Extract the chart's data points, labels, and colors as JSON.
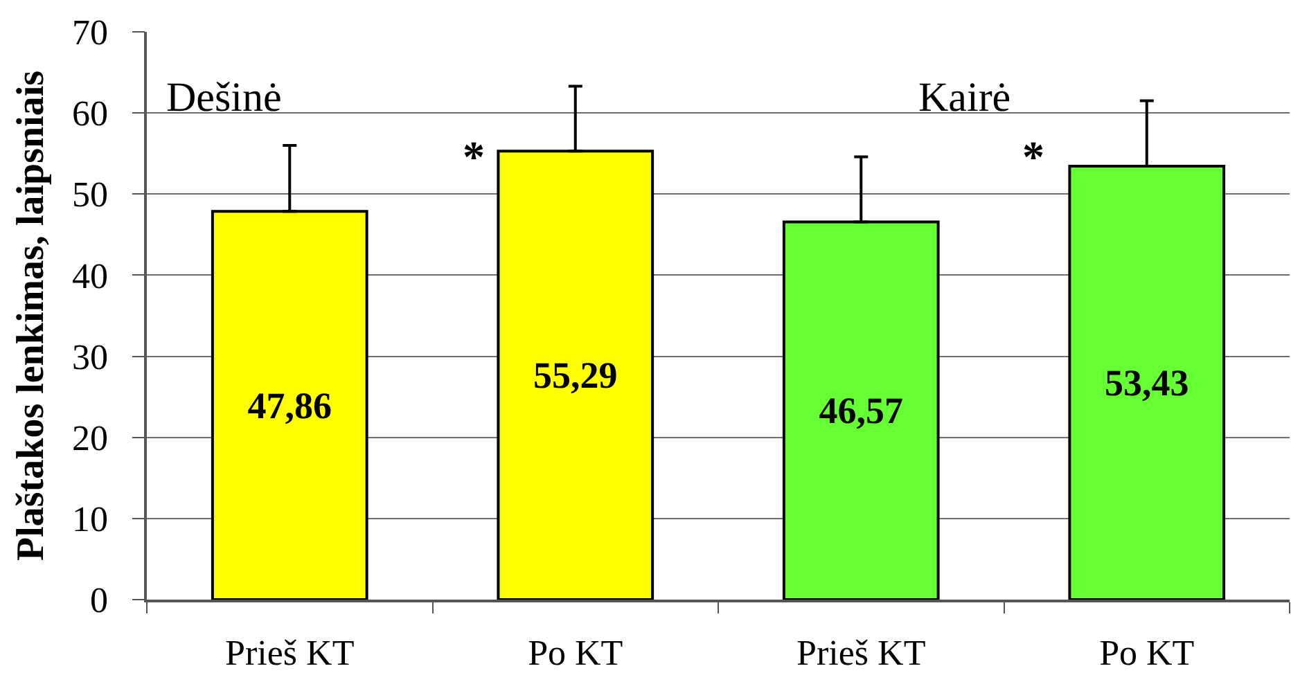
{
  "chart_data": {
    "type": "bar",
    "ylabel": "Plaštakos lenkimas, laipsniais",
    "categories": [
      "Prieš KT",
      "Po KT",
      "Prieš KT",
      "Po KT"
    ],
    "values": [
      47.86,
      55.29,
      46.57,
      53.43
    ],
    "colors": [
      "#ffff00",
      "#ffff00",
      "#66ff33",
      "#66ff33"
    ],
    "errors": [
      [
        47.86,
        56
      ],
      [
        55.29,
        63.3
      ],
      [
        46.57,
        54.6
      ],
      [
        53.43,
        61.5
      ]
    ],
    "value_labels": [
      "47,86",
      "55,29",
      "46,57",
      "53,43"
    ],
    "annotations": [
      "Dešinė",
      "Kairė",
      "*",
      "*"
    ],
    "ylim": [
      0,
      70
    ],
    "yticks": [
      0,
      10,
      20,
      30,
      40,
      50,
      60,
      70
    ],
    "grid": "y"
  }
}
